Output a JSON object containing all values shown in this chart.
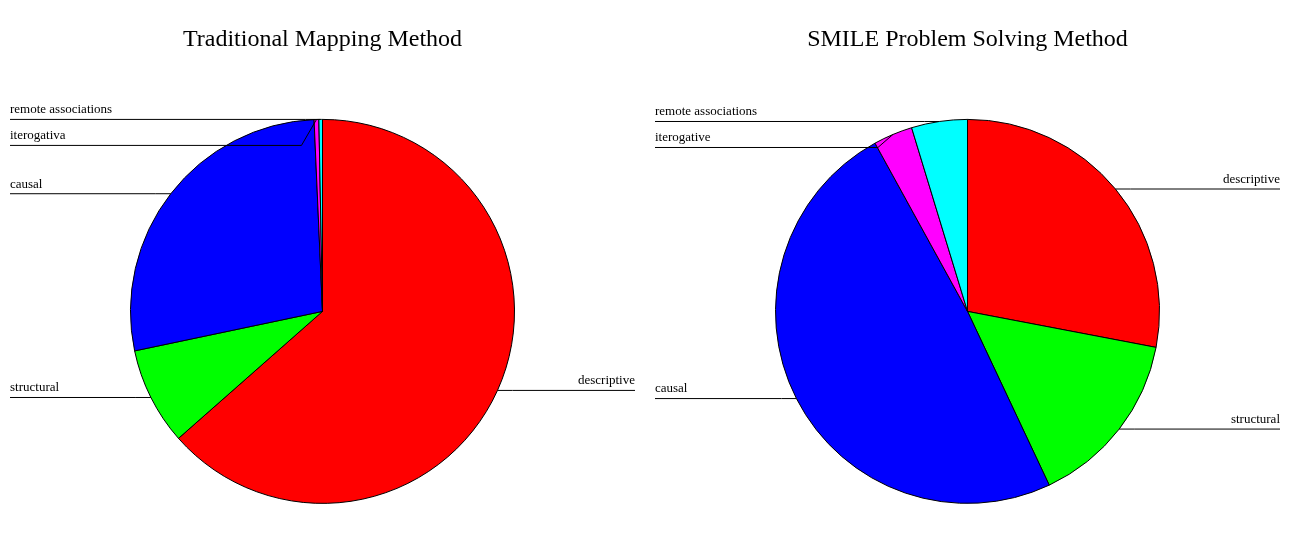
{
  "chart_data": [
    {
      "type": "pie",
      "title": "Traditional Mapping Method",
      "categories": [
        "descriptive",
        "structural",
        "causal",
        "iterogativa",
        "remote associations"
      ],
      "values": [
        63.5,
        8.2,
        27.6,
        0.4,
        0.3
      ],
      "colors": [
        "#ff0000",
        "#00ff00",
        "#0000ff",
        "#ff00ff",
        "#00ffff"
      ]
    },
    {
      "type": "pie",
      "title": "SMILE Problem Solving Method",
      "categories": [
        "descriptive",
        "structural",
        "causal",
        "iterogative",
        "remote associations"
      ],
      "values": [
        28,
        15,
        49,
        3.3,
        4.7
      ],
      "colors": [
        "#ff0000",
        "#00ff00",
        "#0000ff",
        "#ff00ff",
        "#00ffff"
      ]
    }
  ]
}
